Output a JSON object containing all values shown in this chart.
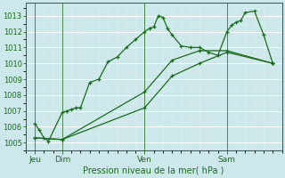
{
  "xlabel": "Pression niveau de la mer( hPa )",
  "bg_color": "#cce8ea",
  "grid_major_color": "#ffffff",
  "grid_minor_color": "#ddeef0",
  "line_color": "#1a6b1a",
  "ylim": [
    1004.5,
    1013.8
  ],
  "yticks": [
    1005,
    1006,
    1007,
    1008,
    1009,
    1010,
    1011,
    1012,
    1013
  ],
  "xlim": [
    0,
    28
  ],
  "day_positions": [
    1,
    4,
    13,
    22
  ],
  "day_labels": [
    "Jeu",
    "Dim",
    "Ven",
    "Sam"
  ],
  "vline_positions": [
    1,
    4,
    13,
    22
  ],
  "series1_x": [
    1,
    1.5,
    2,
    2.5,
    4,
    4.5,
    5,
    5.5,
    6,
    7,
    8,
    9,
    10,
    11,
    12,
    13,
    13.5,
    14,
    14.5,
    15,
    15.5,
    16,
    17,
    18,
    19,
    20,
    21,
    22,
    22.5,
    23,
    23.5,
    24,
    25,
    26,
    27
  ],
  "series1_y": [
    1006.2,
    1005.8,
    1005.3,
    1005.1,
    1006.9,
    1007.0,
    1007.1,
    1007.2,
    1007.2,
    1008.8,
    1009.0,
    1010.1,
    1010.4,
    1011.0,
    1011.5,
    1012.0,
    1012.2,
    1012.3,
    1013.0,
    1012.9,
    1012.2,
    1011.8,
    1011.1,
    1011.0,
    1011.0,
    1010.7,
    1010.5,
    1012.0,
    1012.4,
    1012.6,
    1012.7,
    1013.2,
    1013.3,
    1011.8,
    1010.0
  ],
  "series2_x": [
    1,
    4,
    13,
    16,
    19,
    22,
    27
  ],
  "series2_y": [
    1005.3,
    1005.2,
    1007.2,
    1009.2,
    1010.0,
    1010.7,
    1010.0
  ],
  "series3_x": [
    1,
    4,
    13,
    16,
    19,
    22,
    27
  ],
  "series3_y": [
    1005.3,
    1005.2,
    1008.2,
    1010.2,
    1010.8,
    1010.8,
    1010.0
  ]
}
